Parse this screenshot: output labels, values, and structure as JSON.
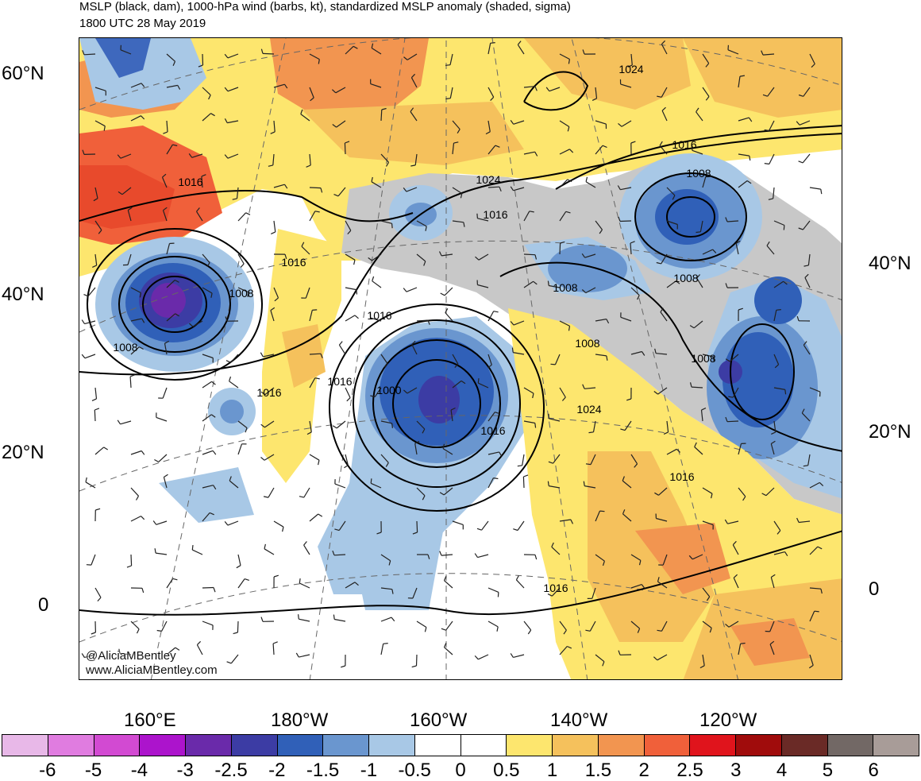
{
  "title_line1": "MSLP (black, dam), 1000-hPa wind (barbs, kt), standardized MSLP anomaly (shaded, sigma)",
  "title_line2": "1800 UTC 28 May 2019",
  "credits": [
    "@AliciaMBentley",
    "www.AliciaMBentley.com"
  ],
  "lat_labels_left": [
    "60°N",
    "40°N",
    "20°N",
    "0"
  ],
  "lat_labels_right": [
    "40°N",
    "20°N",
    "0"
  ],
  "lon_labels": [
    "160°E",
    "180°W",
    "160°W",
    "140°W",
    "120°W"
  ],
  "isobar_labels": [
    "1024",
    "1016",
    "1024",
    "1016",
    "1008",
    "1016",
    "1016",
    "1008",
    "1008",
    "1008",
    "1008",
    "1008",
    "1016",
    "1016",
    "1000",
    "1016",
    "1016",
    "1024",
    "1008",
    "1016",
    "1016"
  ],
  "colorbar": {
    "labels": [
      "-6",
      "-5",
      "-4",
      "-3",
      "-2.5",
      "-2",
      "-1.5",
      "-1",
      "-0.5",
      "0",
      "0.5",
      "1",
      "1.5",
      "2",
      "2.5",
      "3",
      "4",
      "5",
      "6"
    ],
    "colors": [
      "#e8b8e8",
      "#e07ce0",
      "#d24ad2",
      "#ac14cc",
      "#6a2aaa",
      "#3c3ca4",
      "#3060b8",
      "#6a96cf",
      "#a8c8e6",
      "#ffffff",
      "#ffffff",
      "#fde66e",
      "#f5c15c",
      "#f29550",
      "#f0603a",
      "#e0141c",
      "#a00c0c",
      "#6a2a26",
      "#726865",
      "#a89c98"
    ]
  },
  "status_colors": {
    "strong_low_purple": "#6b2ea8",
    "low_blue": "#3e68bd",
    "high_orange": "#f0923f",
    "high_red": "#e84a2c",
    "land_grey": "#c8c8c8"
  }
}
